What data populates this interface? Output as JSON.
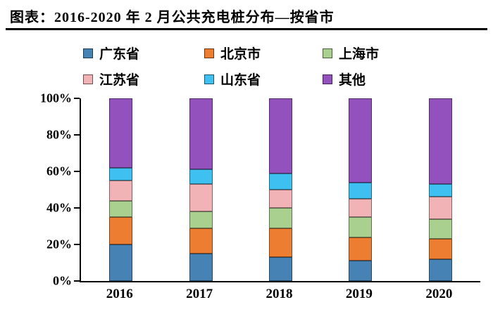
{
  "title": "图表：2016-2020 年 2 月公共充电桩分布—按省市",
  "chart_data": {
    "type": "bar",
    "stacked": true,
    "percent": true,
    "title": "图表：2016-2020 年 2 月公共充电桩分布—按省市",
    "categories": [
      "2016",
      "2017",
      "2018",
      "2019",
      "2020"
    ],
    "series": [
      {
        "name": "广东省",
        "color": "#4682B4",
        "values": [
          20,
          15,
          13,
          11,
          12
        ]
      },
      {
        "name": "北京市",
        "color": "#ED7D31",
        "values": [
          15,
          14,
          16,
          13,
          11
        ]
      },
      {
        "name": "上海市",
        "color": "#A9D08E",
        "values": [
          9,
          9,
          11,
          11,
          11
        ]
      },
      {
        "name": "江苏省",
        "color": "#F2B3B6",
        "values": [
          11,
          15,
          10,
          10,
          12
        ]
      },
      {
        "name": "山东省",
        "color": "#3EC0F0",
        "values": [
          7,
          8,
          9,
          9,
          7
        ]
      },
      {
        "name": "其他",
        "color": "#9351BD",
        "values": [
          38,
          39,
          41,
          46,
          47
        ]
      }
    ],
    "xlabel": "",
    "ylabel": "",
    "ylim": [
      0,
      100
    ],
    "yticks": [
      "100%",
      "80%",
      "60%",
      "40%",
      "20%",
      "0%"
    ],
    "grid": false,
    "legend_position": "top"
  }
}
